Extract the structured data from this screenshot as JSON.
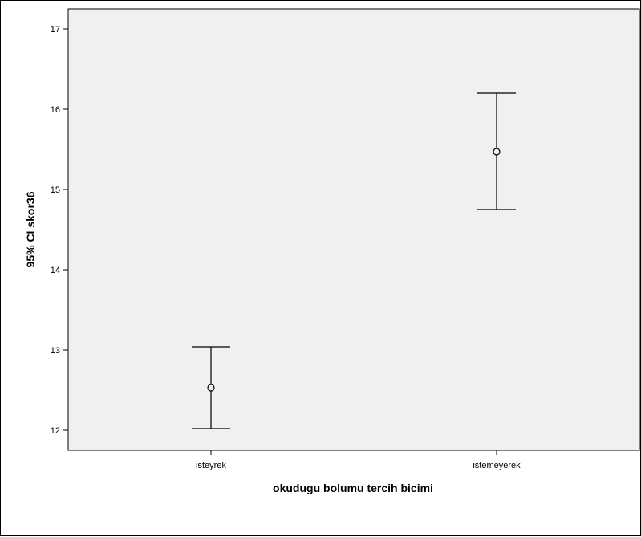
{
  "chart_data": {
    "type": "errorbar",
    "xlabel": "okudugu bolumu tercih bicimi",
    "ylabel": "95% CI skor36",
    "categories": [
      "isteyrek",
      "istemeyerek"
    ],
    "means": [
      12.53,
      15.47
    ],
    "lower": [
      12.02,
      14.75
    ],
    "upper": [
      13.04,
      16.2
    ],
    "ylim": [
      11.75,
      17.25
    ],
    "yticks": [
      "12",
      "13",
      "14",
      "15",
      "16",
      "17"
    ],
    "grid": false,
    "colors": {
      "plot_background": "#f0f0f0",
      "marks": "#000000"
    }
  }
}
